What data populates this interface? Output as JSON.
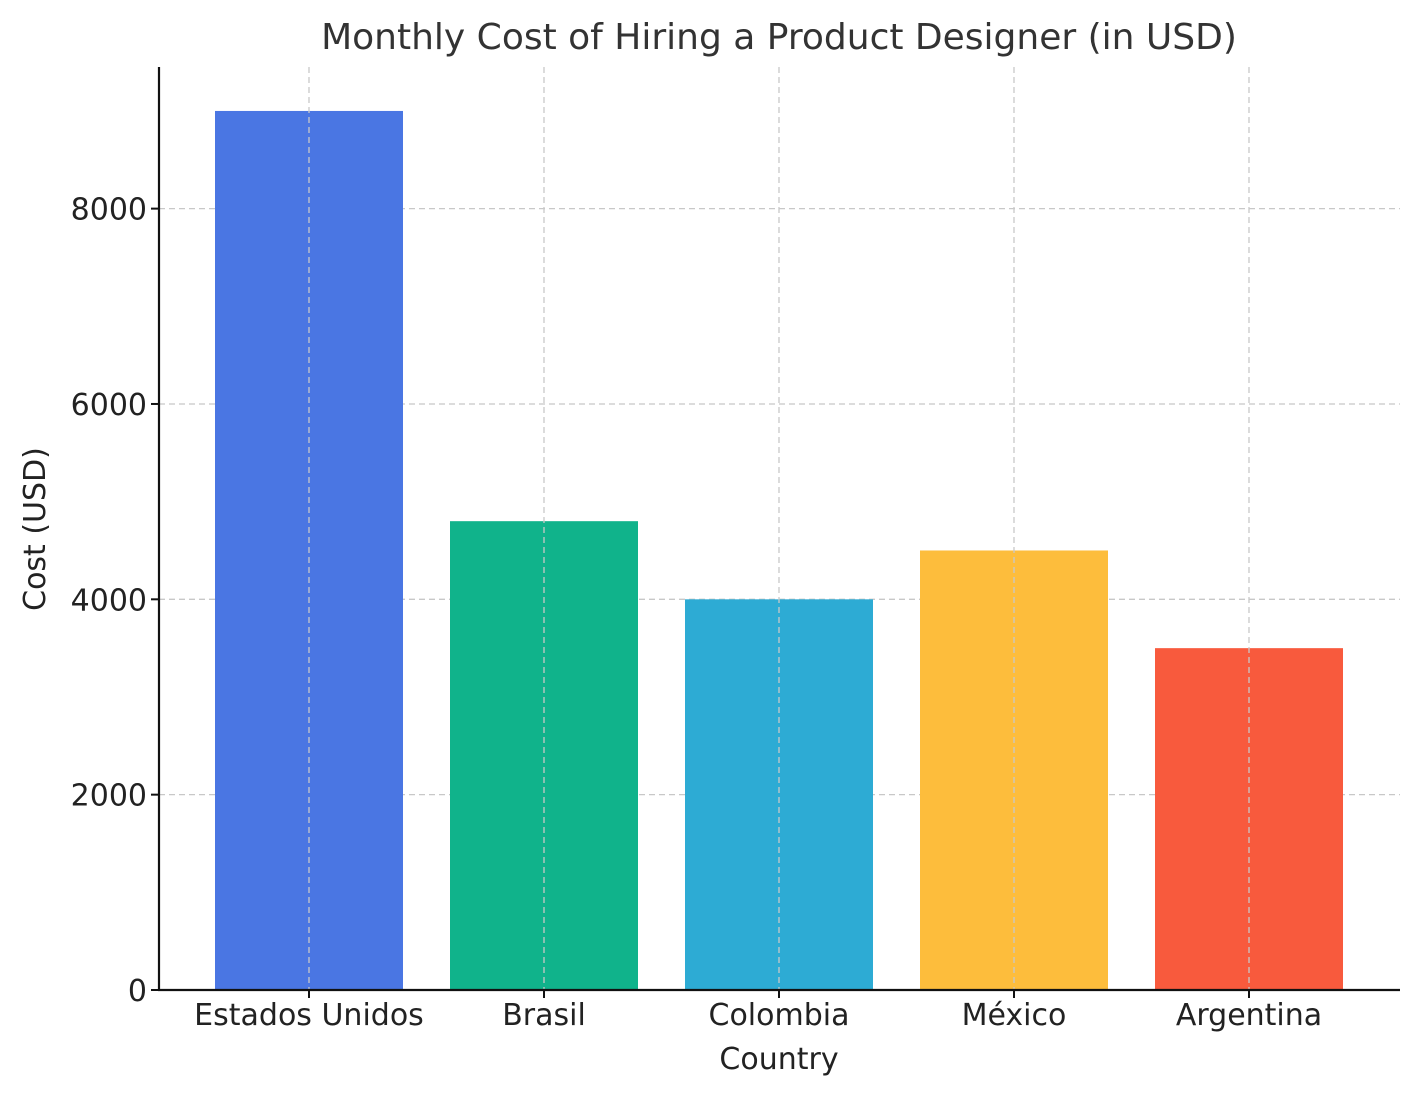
{
  "chart_data": {
    "type": "bar",
    "title": "Monthly Cost of Hiring a Product Designer (in USD)",
    "xlabel": "Country",
    "ylabel": "Cost (USD)",
    "categories": [
      "Estados Unidos",
      "Brasil",
      "Colombia",
      "México",
      "Argentina"
    ],
    "values": [
      9000,
      4800,
      4000,
      4500,
      3500
    ],
    "colors": [
      "#4a76e3",
      "#10b38b",
      "#2dabd4",
      "#fdbd3c",
      "#f85a3d"
    ],
    "ylim": [
      0,
      9450
    ],
    "yticks": [
      0,
      2000,
      4000,
      6000,
      8000
    ],
    "grid": true
  }
}
